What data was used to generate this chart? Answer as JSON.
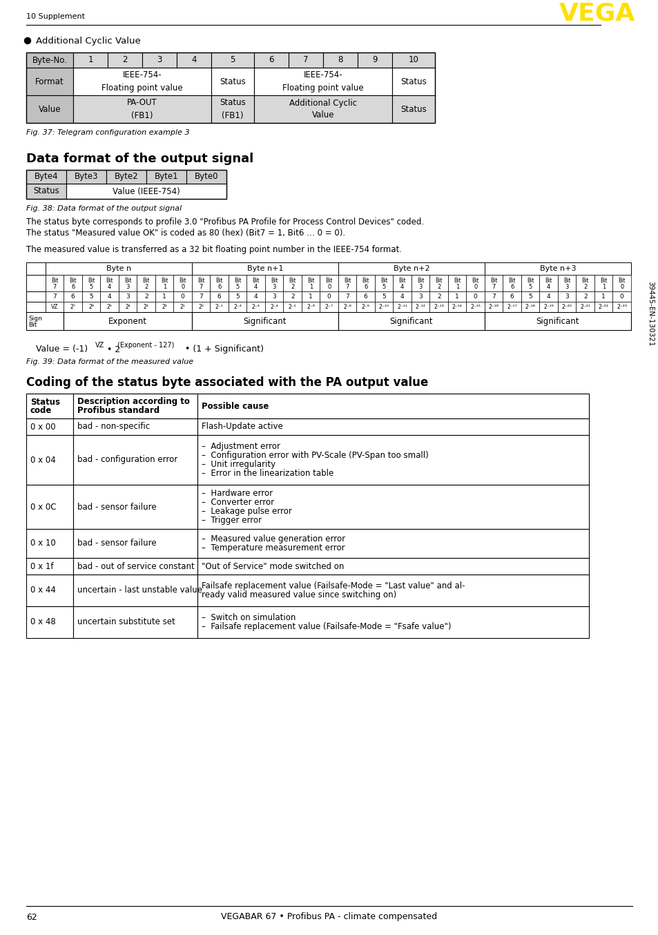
{
  "page_number": "62",
  "footer_text": "VEGABAR 67 • Profibus PA - climate compensated",
  "header_section": "10 Supplement",
  "section_bullet": "Additional Cyclic Value",
  "table1_header": [
    "Byte-No.",
    "1",
    "2",
    "3",
    "4",
    "5",
    "6",
    "7",
    "8",
    "9",
    "10"
  ],
  "fig37_caption": "Fig. 37: Telegram configuration example 3",
  "section2_title": "Data format of the output signal",
  "table2_header": [
    "Byte4",
    "Byte3",
    "Byte2",
    "Byte1",
    "Byte0"
  ],
  "fig38_caption": "Fig. 38: Data format of the output signal",
  "para1_line1": "The status byte corresponds to profile 3.0 \"Profibus PA Profile for Process Control Devices\" coded.",
  "para1_line2": "The status \"Measured value OK\" is coded as 80 (hex) (Bit7 = 1, Bit6 … 0 = 0).",
  "para2": "The measured value is transferred as a 32 bit floating point number in the IEEE-754 format.",
  "byte_table_headers": [
    "Byte n",
    "Byte n+1",
    "Byte n+2",
    "Byte n+3"
  ],
  "val_row": [
    "VZ",
    "2⁷",
    "2⁶",
    "2⁵",
    "2⁴",
    "2³",
    "2²",
    "2¹",
    "2⁰",
    "2⁻¹",
    "2⁻²",
    "2⁻³",
    "2⁻⁴",
    "2⁻⁵",
    "2⁻⁶",
    "2⁻⁷",
    "2⁻⁸",
    "2⁻⁹",
    "2⁻¹⁰",
    "2⁻¹¹",
    "2⁻¹²",
    "2⁻¹³",
    "2⁻¹⁴",
    "2⁻¹⁵",
    "2⁻¹⁶",
    "2⁻¹⁷",
    "2⁻¹⁸",
    "2⁻¹⁹",
    "2⁻²⁰",
    "2⁻²¹",
    "2⁻²²",
    "2⁻²³"
  ],
  "fig39_caption": "Fig. 39: Data format of the measured value",
  "section3_title": "Coding of the status byte associated with the PA output value",
  "status_rows": [
    [
      "0 x 00",
      "bad - non-specific",
      "Flash-Update active"
    ],
    [
      "0 x 04",
      "bad - configuration error",
      "–  Adjustment error\n–  Configuration error with PV-Scale (PV-Span too small)\n–  Unit irregularity\n–  Error in the linearization table"
    ],
    [
      "0 x 0C",
      "bad - sensor failure",
      "–  Hardware error\n–  Converter error\n–  Leakage pulse error\n–  Trigger error"
    ],
    [
      "0 x 10",
      "bad - sensor failure",
      "–  Measured value generation error\n–  Temperature measurement error"
    ],
    [
      "0 x 1f",
      "bad - out of service constant",
      "\"Out of Service\" mode switched on"
    ],
    [
      "0 x 44",
      "uncertain - last unstable value",
      "Failsafe replacement value (Failsafe-Mode = \"Last value\" and al-\nready valid measured value since switching on)"
    ],
    [
      "0 x 48",
      "uncertain substitute set",
      "–  Switch on simulation\n–  Failsafe replacement value (Failsafe-Mode = \"Fsafe value\")"
    ]
  ],
  "sidebar_text": "39445-EN-130321",
  "bg_color": "#ffffff"
}
